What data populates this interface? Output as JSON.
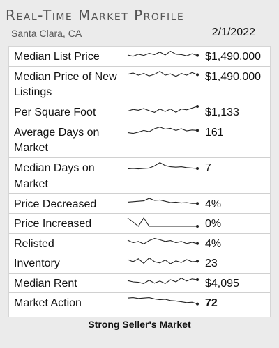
{
  "header": {
    "title": "Real-Time Market Profile",
    "location": "Santa Clara, CA",
    "date": "2/1/2022"
  },
  "rows": [
    {
      "label": "Median List Price",
      "value": "$1,490,000",
      "bold": false,
      "lines": 1,
      "trend": [
        0.5,
        0.35,
        0.6,
        0.45,
        0.7,
        0.55,
        0.85,
        0.5,
        0.95,
        0.6,
        0.55,
        0.4,
        0.65,
        0.45
      ]
    },
    {
      "label": "Median Price of New Listings",
      "value": "$1,490,000",
      "bold": false,
      "lines": 2,
      "trend": [
        0.6,
        0.75,
        0.5,
        0.7,
        0.4,
        0.6,
        0.95,
        0.5,
        0.65,
        0.35,
        0.7,
        0.5,
        0.8,
        0.55
      ]
    },
    {
      "label": "Per Square Foot",
      "value": "$1,133",
      "bold": false,
      "lines": 1,
      "trend": [
        0.45,
        0.65,
        0.55,
        0.75,
        0.5,
        0.3,
        0.7,
        0.4,
        0.7,
        0.3,
        0.7,
        0.6,
        0.8,
        1.0
      ]
    },
    {
      "label": "Average Days on Market",
      "value": "161",
      "bold": false,
      "lines": 2,
      "trend": [
        0.3,
        0.2,
        0.35,
        0.55,
        0.4,
        0.75,
        0.95,
        0.7,
        0.8,
        0.55,
        0.75,
        0.5,
        0.6,
        0.55
      ]
    },
    {
      "label": "Median Days on Market",
      "value": "7",
      "bold": false,
      "lines": 2,
      "trend": [
        0.2,
        0.25,
        0.2,
        0.25,
        0.3,
        0.55,
        0.95,
        0.6,
        0.45,
        0.4,
        0.45,
        0.35,
        0.3,
        0.25
      ]
    },
    {
      "label": "Price Decreased",
      "value": "4%",
      "bold": false,
      "lines": 1,
      "trend": [
        0.55,
        0.6,
        0.65,
        0.7,
        1.0,
        0.75,
        0.8,
        0.65,
        0.5,
        0.55,
        0.45,
        0.5,
        0.4,
        0.4
      ]
    },
    {
      "label": "Price Increased",
      "value": "0%",
      "bold": false,
      "lines": 1,
      "trend": [
        1.0,
        0.5,
        0.0,
        1.0,
        0.0,
        0.0,
        0.0,
        0.0,
        0.0,
        0.0,
        0.0,
        0.0,
        0.0,
        0.0
      ]
    },
    {
      "label": "Relisted",
      "value": "4%",
      "bold": false,
      "lines": 1,
      "trend": [
        0.75,
        0.45,
        0.6,
        0.3,
        0.7,
        0.95,
        0.8,
        0.6,
        0.7,
        0.45,
        0.6,
        0.35,
        0.5,
        0.35
      ]
    },
    {
      "label": "Inventory",
      "value": "23",
      "bold": false,
      "lines": 1,
      "trend": [
        0.75,
        0.5,
        0.85,
        0.3,
        0.95,
        0.5,
        0.35,
        0.7,
        0.25,
        0.6,
        0.4,
        0.75,
        0.5,
        0.55
      ]
    },
    {
      "label": "Median Rent",
      "value": "$4,095",
      "bold": false,
      "lines": 1,
      "trend": [
        0.65,
        0.5,
        0.45,
        0.3,
        0.7,
        0.35,
        0.6,
        0.3,
        0.75,
        0.5,
        0.95,
        0.6,
        0.85,
        0.75
      ]
    },
    {
      "label": "Market Action",
      "value": "72",
      "bold": true,
      "lines": 1,
      "trend": [
        0.9,
        0.95,
        0.85,
        0.9,
        0.95,
        0.8,
        0.7,
        0.75,
        0.6,
        0.55,
        0.45,
        0.35,
        0.4,
        0.2
      ]
    }
  ],
  "footer": {
    "summary": "Strong Seller's Market"
  },
  "colors": {
    "sparkline": "#222222",
    "background": "#ebebeb"
  }
}
